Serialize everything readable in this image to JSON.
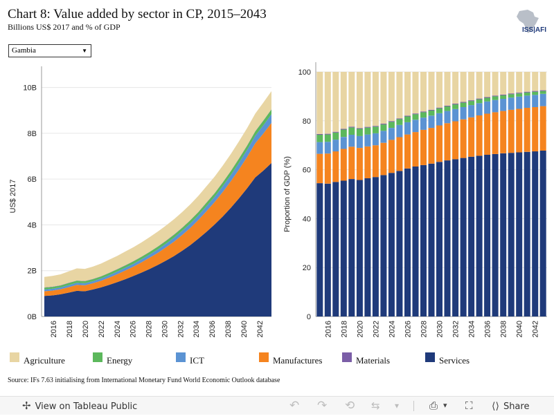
{
  "header": {
    "title": "Chart 8: Value added by sector in CP, 2015–2043",
    "subtitle": "Billions US$ 2017 and % of GDP",
    "logo_text": "ISS|AFI"
  },
  "filter": {
    "selected": "Gambia"
  },
  "source": "Source: IFs 7.63 initialising from International Monetary Fund World Economic Outlook database",
  "colors": {
    "Agriculture": "#e8d5a3",
    "Energy": "#5cb85c",
    "ICT": "#5b93d3",
    "Manufactures": "#f5841f",
    "Materials": "#7b5ea7",
    "Services": "#1f3a7a"
  },
  "legend": [
    {
      "name": "Agriculture"
    },
    {
      "name": "Energy"
    },
    {
      "name": "ICT"
    },
    {
      "name": "Manufactures"
    },
    {
      "name": "Materials"
    },
    {
      "name": "Services"
    }
  ],
  "toolbar": {
    "view_label": "View on Tableau Public",
    "share_label": "Share"
  },
  "chart_data": [
    {
      "type": "area",
      "stacked": true,
      "x": [
        2015,
        2016,
        2017,
        2018,
        2019,
        2020,
        2021,
        2022,
        2023,
        2024,
        2025,
        2026,
        2027,
        2028,
        2029,
        2030,
        2031,
        2032,
        2033,
        2034,
        2035,
        2036,
        2037,
        2038,
        2039,
        2040,
        2041,
        2042,
        2043
      ],
      "ylabel": "US$ 2017",
      "yticks": [
        "0B",
        "2B",
        "4B",
        "6B",
        "8B",
        "10B"
      ],
      "ylim": [
        0,
        10.5
      ],
      "xticks": [
        2016,
        2018,
        2020,
        2022,
        2024,
        2026,
        2028,
        2030,
        2032,
        2034,
        2036,
        2038,
        2040,
        2042
      ],
      "series": [
        {
          "name": "Services",
          "values": [
            0.9,
            0.92,
            0.97,
            1.04,
            1.12,
            1.1,
            1.18,
            1.27,
            1.38,
            1.5,
            1.63,
            1.77,
            1.92,
            2.08,
            2.25,
            2.44,
            2.64,
            2.87,
            3.12,
            3.4,
            3.7,
            4.02,
            4.37,
            4.75,
            5.16,
            5.6,
            6.07,
            6.37,
            6.7
          ]
        },
        {
          "name": "Manufactures",
          "values": [
            0.2,
            0.21,
            0.22,
            0.24,
            0.26,
            0.26,
            0.27,
            0.29,
            0.32,
            0.35,
            0.38,
            0.41,
            0.45,
            0.49,
            0.53,
            0.58,
            0.63,
            0.69,
            0.75,
            0.82,
            0.9,
            0.98,
            1.07,
            1.16,
            1.26,
            1.37,
            1.49,
            1.62,
            1.75
          ]
        },
        {
          "name": "ICT",
          "values": [
            0.08,
            0.08,
            0.08,
            0.09,
            0.09,
            0.09,
            0.09,
            0.1,
            0.1,
            0.11,
            0.12,
            0.12,
            0.13,
            0.14,
            0.15,
            0.16,
            0.17,
            0.18,
            0.19,
            0.2,
            0.22,
            0.23,
            0.25,
            0.27,
            0.29,
            0.31,
            0.33,
            0.36,
            0.38
          ]
        },
        {
          "name": "Energy",
          "values": [
            0.08,
            0.08,
            0.08,
            0.09,
            0.09,
            0.09,
            0.09,
            0.09,
            0.1,
            0.1,
            0.1,
            0.11,
            0.11,
            0.11,
            0.12,
            0.12,
            0.13,
            0.13,
            0.14,
            0.14,
            0.15,
            0.15,
            0.16,
            0.17,
            0.18,
            0.18,
            0.19,
            0.2,
            0.21
          ]
        },
        {
          "name": "Materials",
          "values": [
            0.01,
            0.01,
            0.01,
            0.01,
            0.01,
            0.01,
            0.01,
            0.01,
            0.01,
            0.01,
            0.01,
            0.01,
            0.01,
            0.01,
            0.01,
            0.01,
            0.01,
            0.01,
            0.01,
            0.01,
            0.01,
            0.01,
            0.01,
            0.01,
            0.01,
            0.01,
            0.01,
            0.01,
            0.01
          ]
        },
        {
          "name": "Agriculture",
          "values": [
            0.46,
            0.47,
            0.48,
            0.5,
            0.53,
            0.53,
            0.54,
            0.55,
            0.57,
            0.58,
            0.6,
            0.61,
            0.62,
            0.64,
            0.65,
            0.66,
            0.67,
            0.68,
            0.69,
            0.7,
            0.71,
            0.72,
            0.73,
            0.74,
            0.75,
            0.76,
            0.77,
            0.78,
            0.79
          ]
        }
      ]
    },
    {
      "type": "bar",
      "stacked": true,
      "x": [
        2015,
        2016,
        2017,
        2018,
        2019,
        2020,
        2021,
        2022,
        2023,
        2024,
        2025,
        2026,
        2027,
        2028,
        2029,
        2030,
        2031,
        2032,
        2033,
        2034,
        2035,
        2036,
        2037,
        2038,
        2039,
        2040,
        2041,
        2042,
        2043
      ],
      "ylabel": "Proportion of GDP (%)",
      "yticks": [
        0,
        20,
        40,
        60,
        80,
        100
      ],
      "ylim": [
        0,
        100
      ],
      "xticks": [
        2016,
        2018,
        2020,
        2022,
        2024,
        2026,
        2028,
        2030,
        2032,
        2034,
        2036,
        2038,
        2040,
        2042
      ],
      "series": [
        {
          "name": "Services",
          "values": [
            54.5,
            54.3,
            55.0,
            55.5,
            56.2,
            55.8,
            56.5,
            57.0,
            57.8,
            58.7,
            59.5,
            60.5,
            61.3,
            61.9,
            62.5,
            63.2,
            63.8,
            64.3,
            64.8,
            65.3,
            65.7,
            66.1,
            66.4,
            66.7,
            66.9,
            67.1,
            67.3,
            67.5,
            67.8
          ]
        },
        {
          "name": "Manufactures",
          "values": [
            12.0,
            12.3,
            12.5,
            13.0,
            13.2,
            13.1,
            13.0,
            13.0,
            13.2,
            13.5,
            13.8,
            13.9,
            14.1,
            14.4,
            14.6,
            14.9,
            15.2,
            15.5,
            15.8,
            16.1,
            16.5,
            16.8,
            17.1,
            17.3,
            17.6,
            17.8,
            18.0,
            18.1,
            18.2
          ]
        },
        {
          "name": "ICT",
          "values": [
            4.8,
            4.8,
            4.8,
            4.9,
            4.9,
            4.9,
            4.9,
            4.9,
            4.9,
            4.9,
            5.0,
            5.0,
            5.0,
            5.0,
            5.0,
            5.0,
            5.0,
            5.0,
            5.0,
            5.0,
            5.0,
            5.0,
            5.0,
            5.0,
            5.0,
            5.0,
            5.0,
            5.0,
            5.0
          ]
        },
        {
          "name": "Energy",
          "values": [
            3.0,
            3.0,
            2.9,
            3.0,
            3.0,
            2.9,
            2.8,
            2.7,
            2.6,
            2.5,
            2.4,
            2.4,
            2.3,
            2.2,
            2.1,
            2.0,
            1.9,
            1.9,
            1.8,
            1.7,
            1.6,
            1.5,
            1.5,
            1.4,
            1.4,
            1.3,
            1.3,
            1.3,
            1.2
          ]
        },
        {
          "name": "Materials",
          "values": [
            0.3,
            0.3,
            0.3,
            0.3,
            0.3,
            0.3,
            0.3,
            0.3,
            0.3,
            0.3,
            0.3,
            0.3,
            0.3,
            0.3,
            0.3,
            0.3,
            0.3,
            0.3,
            0.3,
            0.3,
            0.3,
            0.3,
            0.3,
            0.3,
            0.3,
            0.3,
            0.3,
            0.3,
            0.3
          ]
        },
        {
          "name": "Agriculture",
          "values": [
            25.4,
            25.3,
            24.5,
            23.3,
            22.4,
            23.0,
            22.5,
            22.1,
            21.2,
            20.1,
            19.0,
            17.9,
            17.0,
            16.2,
            15.5,
            14.6,
            13.8,
            13.0,
            12.3,
            11.6,
            10.9,
            10.3,
            9.7,
            9.3,
            8.8,
            8.5,
            8.1,
            7.8,
            7.5
          ]
        }
      ]
    }
  ]
}
